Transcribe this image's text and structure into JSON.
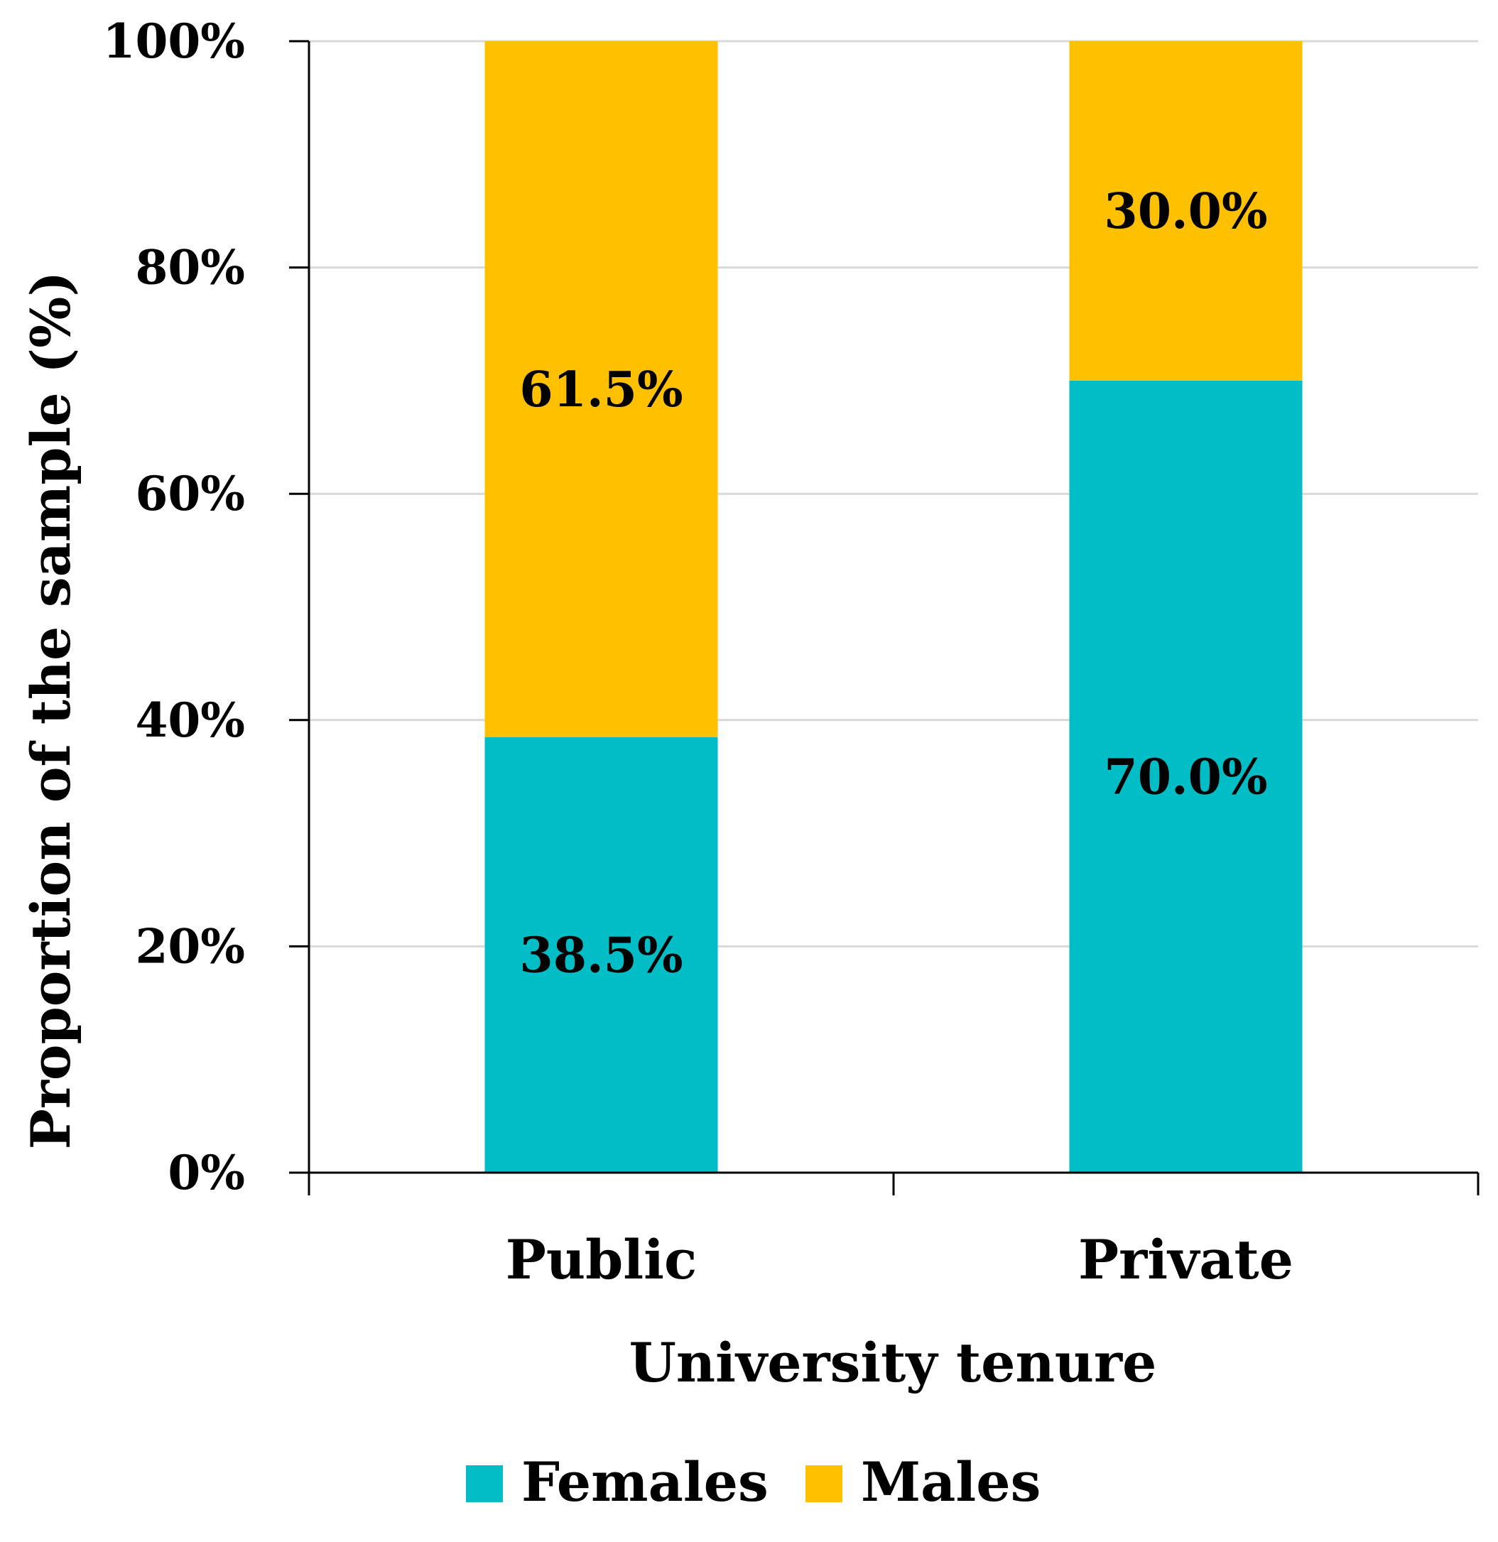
{
  "chart_data": {
    "type": "bar",
    "stacked": true,
    "categories": [
      "Public",
      "Private"
    ],
    "series": [
      {
        "name": "Females",
        "values": [
          38.5,
          70.0
        ],
        "color": "#00BDC6"
      },
      {
        "name": "Males",
        "values": [
          61.5,
          30.0
        ],
        "color": "#FFC000"
      }
    ],
    "data_labels": [
      [
        "38.5%",
        "70.0%"
      ],
      [
        "61.5%",
        "30.0%"
      ]
    ],
    "y_ticks": [
      "0%",
      "20%",
      "40%",
      "60%",
      "80%",
      "100%"
    ],
    "y_tick_values": [
      0,
      20,
      40,
      60,
      80,
      100
    ],
    "ylim": [
      0,
      100
    ],
    "xlabel": "University tenure",
    "ylabel": "Proportion of the sample (%)",
    "grid": true,
    "grid_color": "#D9D9D9",
    "legend_position": "bottom"
  }
}
